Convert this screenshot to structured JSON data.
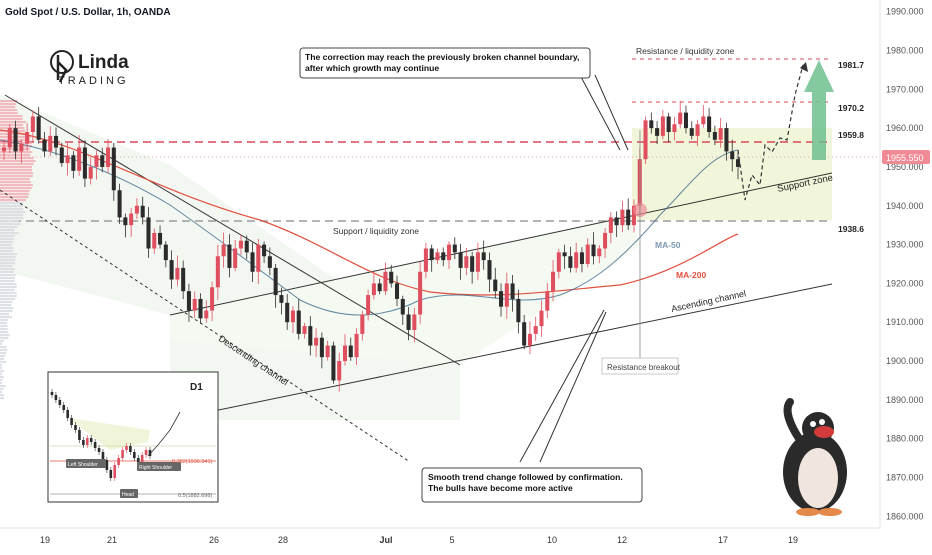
{
  "header": {
    "symbol": "Gold Spot / U.S. Dollar, 1h, OANDA"
  },
  "logo": {
    "top": "Linda",
    "bottom": "TRADING"
  },
  "colors": {
    "up": "#e04f5f",
    "down": "#2b2b2b",
    "ma50": "#3d6b8c",
    "ma200": "#e0513f",
    "resistance_line": "#d9485b",
    "zone_fill": "#eef3d6",
    "channel_fill": "#eef5ec",
    "price_badge": "#f08a95",
    "arrow_green": "#6fbf8f"
  },
  "chart_data": {
    "type": "candlestick",
    "xlabels": [
      "19",
      "21",
      "26",
      "28",
      "Jul",
      "5",
      "10",
      "12",
      "17",
      "19"
    ],
    "y_ticks": [
      "1990.000",
      "1980.000",
      "1970.000",
      "1960.000",
      "1950.000",
      "1940.000",
      "1930.000",
      "1920.000",
      "1910.000",
      "1900.000",
      "1890.000",
      "1880.000",
      "1870.000",
      "1860.000"
    ],
    "ylim": [
      1857,
      1993
    ],
    "current_price": "1955.550",
    "levels": [
      {
        "label": "1981.7",
        "value": 1981.7,
        "text": "Resistance / liquidity zone"
      },
      {
        "label": "1970.2",
        "value": 1970.2
      },
      {
        "label": "1959.8",
        "value": 1959.8
      },
      {
        "label": "1938.6",
        "value": 1938.6,
        "text": "Support / liquidity zone"
      }
    ],
    "indicators": [
      "MA-50",
      "MA-200"
    ],
    "close_path": [
      1955,
      1960,
      1954,
      1956,
      1959,
      1963,
      1957,
      1954,
      1958,
      1955,
      1951,
      1953,
      1949,
      1955,
      1947,
      1950,
      1953,
      1950,
      1955,
      1944,
      1937,
      1935,
      1938,
      1940,
      1937,
      1929,
      1933,
      1930,
      1926,
      1921,
      1924,
      1918,
      1913,
      1916,
      1911,
      1913,
      1919,
      1927,
      1930,
      1924,
      1929,
      1931,
      1928,
      1923,
      1930,
      1927,
      1924,
      1917,
      1915,
      1910,
      1913,
      1907,
      1909,
      1904,
      1906,
      1901,
      1904,
      1895,
      1900,
      1904,
      1901,
      1907,
      1912,
      1917,
      1920,
      1918,
      1923,
      1920,
      1916,
      1912,
      1908,
      1912,
      1923,
      1929,
      1926,
      1928,
      1926,
      1930,
      1928,
      1924,
      1927,
      1923,
      1928,
      1926,
      1921,
      1918,
      1914,
      1920,
      1916,
      1910,
      1904,
      1907,
      1909,
      1913,
      1918,
      1923,
      1928,
      1927,
      1924,
      1928,
      1925,
      1930,
      1927,
      1929,
      1933,
      1937,
      1935,
      1939,
      1935,
      1940,
      1952,
      1962,
      1960,
      1958,
      1963,
      1959,
      1961,
      1964,
      1960,
      1958,
      1961,
      1963,
      1959,
      1957,
      1960,
      1954,
      1952,
      1950
    ],
    "annotations": [
      "The correction may reach the previously broken channel boundary, after which growth may continue",
      "Smooth trend change followed by confirmation. The bulls have become more active",
      "Resistance breakout",
      "Support zone",
      "Descending channel",
      "Ascending channel"
    ],
    "inset": {
      "label": "D1",
      "left_shoulder": "Left Shoulder",
      "head": "Head",
      "right_shoulder": "Right Shoulder",
      "fib1": "0.382(1936.041)",
      "fib2": "0.5(1882.696)"
    }
  }
}
